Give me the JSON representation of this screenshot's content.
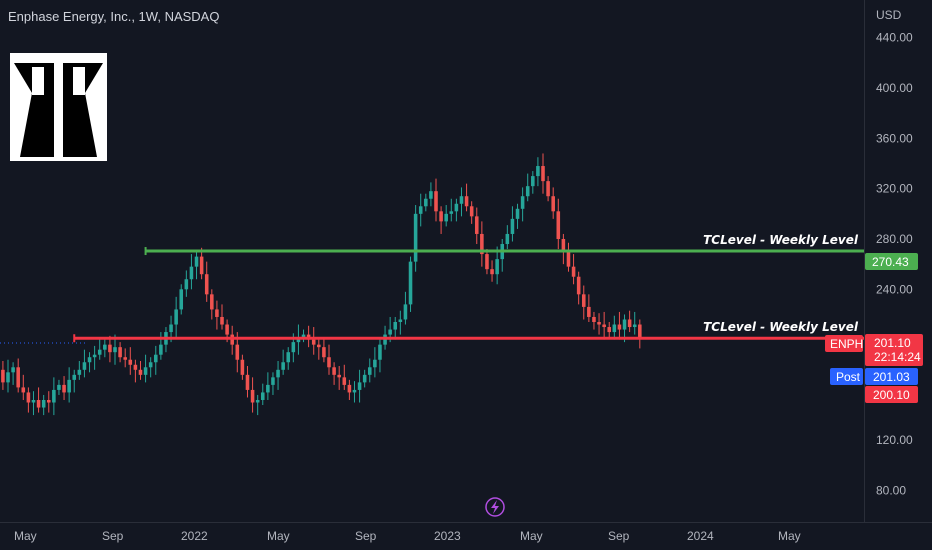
{
  "header": {
    "title": "Enphase Energy, Inc., 1W, NASDAQ"
  },
  "price_axis": {
    "currency": "USD",
    "ticks": [
      "440.00",
      "400.00",
      "360.00",
      "320.00",
      "280.00",
      "240.00",
      "120.00",
      "80.00"
    ]
  },
  "time_axis": {
    "labels": [
      "May",
      "Sep",
      "2022",
      "May",
      "Sep",
      "2023",
      "May",
      "Sep",
      "2024",
      "May"
    ]
  },
  "price_tags": {
    "level_high": "270.43",
    "symbol": "ENPH",
    "last_price": "201.10",
    "countdown": "22:14:24",
    "post_label": "Post",
    "post_price": "201.03",
    "bid": "200.10"
  },
  "colors": {
    "background": "#131722",
    "up": "#26a69a",
    "down": "#ef5350",
    "level_green": "#4caf50",
    "level_red": "#f23645",
    "post_blue": "#2962ff"
  },
  "chart_data": {
    "type": "candlestick",
    "title": "Enphase Energy, Inc., 1W, NASDAQ",
    "y_unit": "USD",
    "ylim": [
      55,
      470
    ],
    "x_range": [
      "2021-04-15",
      "2024-07-15"
    ],
    "levels": [
      {
        "name": "TCLevel - Weekly Level",
        "value": 270.43,
        "color": "#4caf50",
        "start": "2021-11-01"
      },
      {
        "name": "TCLevel - Weekly Level",
        "value": 201.1,
        "color": "#f23645",
        "start": "2021-07-26"
      }
    ],
    "close_series": {
      "start": "2021-04-12",
      "interval_days": 7,
      "values": [
        176,
        166,
        174,
        178,
        162,
        158,
        150,
        152,
        146,
        152,
        150,
        160,
        164,
        158,
        168,
        172,
        176,
        182,
        186,
        188,
        192,
        196,
        190,
        194,
        186,
        184,
        180,
        176,
        172,
        178,
        182,
        188,
        196,
        206,
        212,
        224,
        240,
        248,
        258,
        266,
        252,
        236,
        224,
        218,
        212,
        204,
        196,
        184,
        172,
        160,
        150,
        152,
        158,
        164,
        170,
        176,
        182,
        190,
        198,
        202,
        204,
        200,
        196,
        194,
        186,
        178,
        172,
        170,
        164,
        158,
        160,
        166,
        172,
        178,
        184,
        196,
        204,
        208,
        214,
        216,
        228,
        262,
        300,
        306,
        312,
        318,
        302,
        294,
        300,
        302,
        308,
        314,
        306,
        298,
        284,
        268,
        256,
        252,
        264,
        276,
        284,
        296,
        304,
        314,
        322,
        330,
        338,
        326,
        314,
        302,
        280,
        270,
        258,
        250,
        236,
        226,
        218,
        214,
        212,
        210,
        206,
        212,
        208,
        216,
        210,
        212,
        201
      ]
    }
  }
}
